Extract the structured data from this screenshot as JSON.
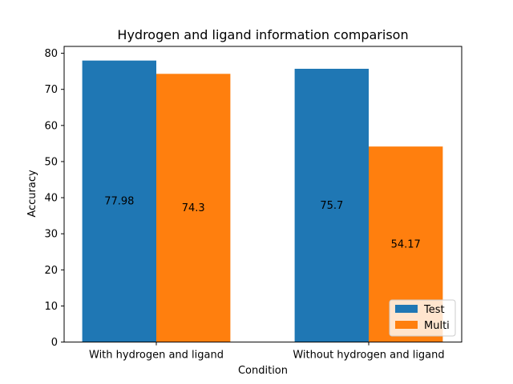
{
  "chart_data": {
    "type": "bar",
    "title": "Hydrogen and ligand information comparison",
    "xlabel": "Condition",
    "ylabel": "Accuracy",
    "categories": [
      "With hydrogen and ligand",
      "Without hydrogen and ligand"
    ],
    "series": [
      {
        "name": "Test",
        "values": [
          77.98,
          75.7
        ],
        "labels": [
          "77.98",
          "75.7"
        ],
        "color": "#1f77b4"
      },
      {
        "name": "Multi",
        "values": [
          74.3,
          54.17
        ],
        "labels": [
          "74.3",
          "54.17"
        ],
        "color": "#ff7f0e"
      }
    ],
    "ylim": [
      0,
      81.9
    ],
    "yticks": [
      0,
      10,
      20,
      30,
      40,
      50,
      60,
      70,
      80
    ],
    "grid": false,
    "legend": "lower-right"
  }
}
